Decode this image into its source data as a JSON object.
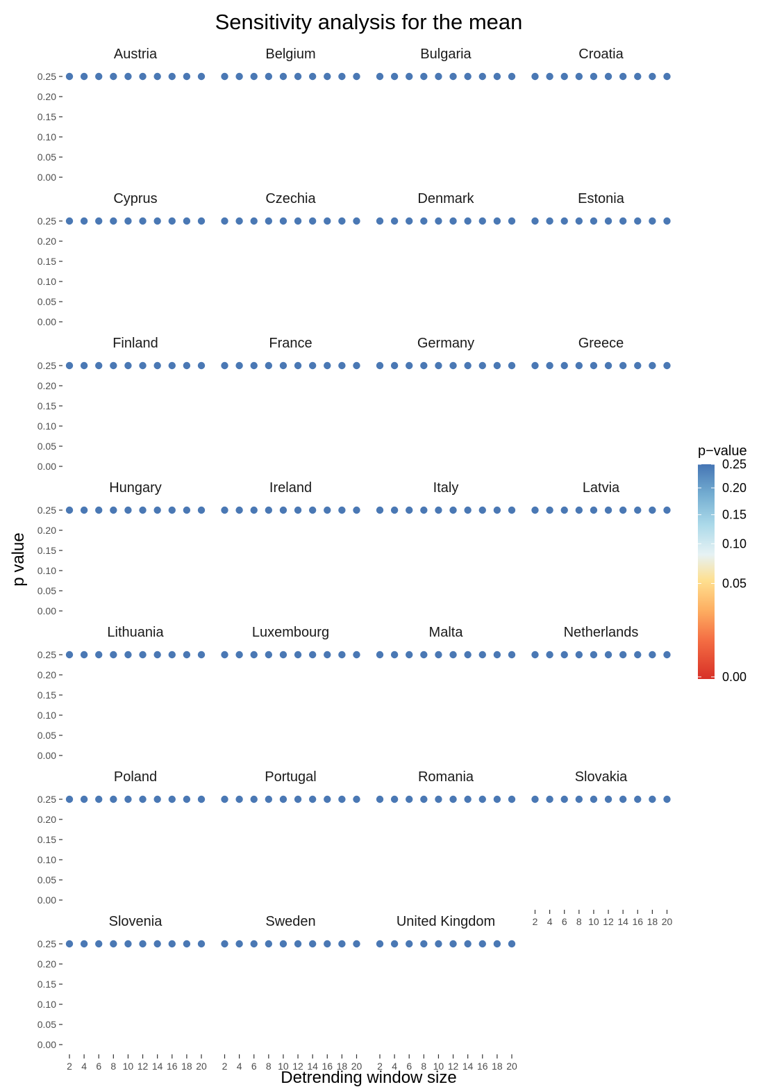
{
  "chart_data": {
    "type": "scatter",
    "title": "Sensitivity analysis for the mean",
    "xlabel": "Detrending window size",
    "ylabel": "p value",
    "x_ticks": [
      2,
      4,
      6,
      8,
      10,
      12,
      14,
      16,
      18,
      20
    ],
    "y_ticks": [
      "0.00",
      "0.05",
      "0.10",
      "0.15",
      "0.20",
      "0.25"
    ],
    "ylim": [
      0,
      0.25
    ],
    "xlim": [
      2,
      20
    ],
    "grid": false,
    "x": [
      2,
      4,
      6,
      8,
      10,
      12,
      14,
      16,
      18,
      20
    ],
    "panels": [
      {
        "name": "Austria",
        "values": [
          0.25,
          0.25,
          0.25,
          0.25,
          0.25,
          0.25,
          0.25,
          0.25,
          0.25,
          0.25
        ]
      },
      {
        "name": "Belgium",
        "values": [
          0.25,
          0.25,
          0.25,
          0.25,
          0.25,
          0.25,
          0.25,
          0.25,
          0.25,
          0.25
        ]
      },
      {
        "name": "Bulgaria",
        "values": [
          0.25,
          0.25,
          0.25,
          0.25,
          0.25,
          0.25,
          0.25,
          0.25,
          0.25,
          0.25
        ]
      },
      {
        "name": "Croatia",
        "values": [
          0.25,
          0.25,
          0.25,
          0.25,
          0.25,
          0.25,
          0.25,
          0.25,
          0.25,
          0.25
        ]
      },
      {
        "name": "Cyprus",
        "values": [
          0.25,
          0.25,
          0.25,
          0.25,
          0.25,
          0.25,
          0.25,
          0.25,
          0.25,
          0.25
        ]
      },
      {
        "name": "Czechia",
        "values": [
          0.25,
          0.25,
          0.25,
          0.25,
          0.25,
          0.25,
          0.25,
          0.25,
          0.25,
          0.25
        ]
      },
      {
        "name": "Denmark",
        "values": [
          0.25,
          0.25,
          0.25,
          0.25,
          0.25,
          0.25,
          0.25,
          0.25,
          0.25,
          0.25
        ]
      },
      {
        "name": "Estonia",
        "values": [
          0.25,
          0.25,
          0.25,
          0.25,
          0.25,
          0.25,
          0.25,
          0.25,
          0.25,
          0.25
        ]
      },
      {
        "name": "Finland",
        "values": [
          0.25,
          0.25,
          0.25,
          0.25,
          0.25,
          0.25,
          0.25,
          0.25,
          0.25,
          0.25
        ]
      },
      {
        "name": "France",
        "values": [
          0.25,
          0.25,
          0.25,
          0.25,
          0.25,
          0.25,
          0.25,
          0.25,
          0.25,
          0.25
        ]
      },
      {
        "name": "Germany",
        "values": [
          0.25,
          0.25,
          0.25,
          0.25,
          0.25,
          0.25,
          0.25,
          0.25,
          0.25,
          0.25
        ]
      },
      {
        "name": "Greece",
        "values": [
          0.25,
          0.25,
          0.25,
          0.25,
          0.25,
          0.25,
          0.25,
          0.25,
          0.25,
          0.25
        ]
      },
      {
        "name": "Hungary",
        "values": [
          0.25,
          0.25,
          0.25,
          0.25,
          0.25,
          0.25,
          0.25,
          0.25,
          0.25,
          0.25
        ]
      },
      {
        "name": "Ireland",
        "values": [
          0.25,
          0.25,
          0.25,
          0.25,
          0.25,
          0.25,
          0.25,
          0.25,
          0.25,
          0.25
        ]
      },
      {
        "name": "Italy",
        "values": [
          0.25,
          0.25,
          0.25,
          0.25,
          0.25,
          0.25,
          0.25,
          0.25,
          0.25,
          0.25
        ]
      },
      {
        "name": "Latvia",
        "values": [
          0.25,
          0.25,
          0.25,
          0.25,
          0.25,
          0.25,
          0.25,
          0.25,
          0.25,
          0.25
        ]
      },
      {
        "name": "Lithuania",
        "values": [
          0.25,
          0.25,
          0.25,
          0.25,
          0.25,
          0.25,
          0.25,
          0.25,
          0.25,
          0.25
        ]
      },
      {
        "name": "Luxembourg",
        "values": [
          0.25,
          0.25,
          0.25,
          0.25,
          0.25,
          0.25,
          0.25,
          0.25,
          0.25,
          0.25
        ]
      },
      {
        "name": "Malta",
        "values": [
          0.25,
          0.25,
          0.25,
          0.25,
          0.25,
          0.25,
          0.25,
          0.25,
          0.25,
          0.25
        ]
      },
      {
        "name": "Netherlands",
        "values": [
          0.25,
          0.25,
          0.25,
          0.25,
          0.25,
          0.25,
          0.25,
          0.25,
          0.25,
          0.25
        ]
      },
      {
        "name": "Poland",
        "values": [
          0.25,
          0.25,
          0.25,
          0.25,
          0.25,
          0.25,
          0.25,
          0.25,
          0.25,
          0.25
        ]
      },
      {
        "name": "Portugal",
        "values": [
          0.25,
          0.25,
          0.25,
          0.25,
          0.25,
          0.25,
          0.25,
          0.25,
          0.25,
          0.25
        ]
      },
      {
        "name": "Romania",
        "values": [
          0.25,
          0.25,
          0.25,
          0.25,
          0.25,
          0.25,
          0.25,
          0.25,
          0.25,
          0.25
        ]
      },
      {
        "name": "Slovakia",
        "values": [
          0.25,
          0.25,
          0.25,
          0.25,
          0.25,
          0.25,
          0.25,
          0.25,
          0.25,
          0.25
        ]
      },
      {
        "name": "Slovenia",
        "values": [
          0.25,
          0.25,
          0.25,
          0.25,
          0.25,
          0.25,
          0.25,
          0.25,
          0.25,
          0.25
        ]
      },
      {
        "name": "Sweden",
        "values": [
          0.25,
          0.25,
          0.25,
          0.25,
          0.25,
          0.25,
          0.25,
          0.25,
          0.25,
          0.25
        ]
      },
      {
        "name": "United Kingdom",
        "values": [
          0.25,
          0.25,
          0.25,
          0.25,
          0.25,
          0.25,
          0.25,
          0.25,
          0.25,
          0.25
        ]
      }
    ],
    "legend": {
      "title": "p−value",
      "position": "right",
      "labels": [
        "0.25",
        "0.20",
        "0.15",
        "0.10",
        "0.05",
        "0.00"
      ],
      "colors": [
        "#d73027",
        "#f46d43",
        "#fdae61",
        "#fee090",
        "#e0f3f8",
        "#abd9e9",
        "#74add1",
        "#4575b4"
      ]
    },
    "point_color": "#4a78b4"
  }
}
